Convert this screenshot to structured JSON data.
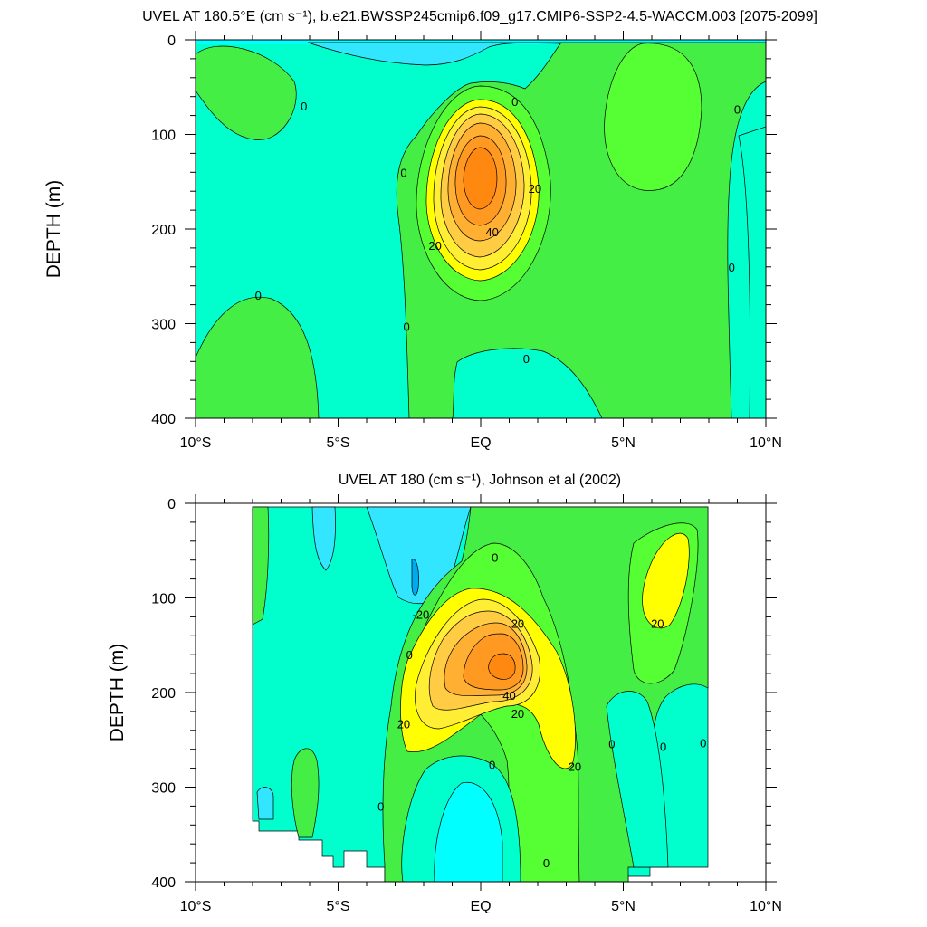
{
  "chart_data": [
    {
      "type": "heatmap",
      "title": "UVEL AT 180.5°E (cm s⁻¹), b.e21.BWSSP245cmip6.f09_g17.CMIP6-SSP2-4.5-WACCM.003 [2075-2099]",
      "xlabel": "",
      "ylabel": "DEPTH (m)",
      "xlim": [
        -10,
        10
      ],
      "ylim": [
        400,
        0
      ],
      "x_ticks": [
        -10,
        -5,
        0,
        5,
        10
      ],
      "x_tick_labels": [
        "10°S",
        "5°S",
        "EQ",
        "5°N",
        "10°N"
      ],
      "y_ticks": [
        0,
        100,
        200,
        300,
        400
      ],
      "y_tick_labels": [
        "0",
        "100",
        "200",
        "300",
        "400"
      ],
      "grid": false,
      "contour_interval": 10,
      "contour_labels": [
        {
          "x": -6.2,
          "y": 70,
          "text": "0"
        },
        {
          "x": 1.2,
          "y": 65,
          "text": "0"
        },
        {
          "x": 9.0,
          "y": 73,
          "text": "0"
        },
        {
          "x": -2.7,
          "y": 140,
          "text": "0"
        },
        {
          "x": 1.9,
          "y": 157,
          "text": "20"
        },
        {
          "x": 0.4,
          "y": 203,
          "text": "40"
        },
        {
          "x": -1.6,
          "y": 217,
          "text": "20"
        },
        {
          "x": 8.8,
          "y": 240,
          "text": "0"
        },
        {
          "x": -7.8,
          "y": 270,
          "text": "0"
        },
        {
          "x": -2.6,
          "y": 303,
          "text": "0"
        },
        {
          "x": 1.6,
          "y": 337,
          "text": "0"
        }
      ],
      "jet_core": {
        "lat": 0.0,
        "depth": 145,
        "max_speed": 70
      }
    },
    {
      "type": "heatmap",
      "title": "UVEL AT 180 (cm s⁻¹), Johnson et al (2002)",
      "xlabel": "",
      "ylabel": "DEPTH (m)",
      "xlim": [
        -10,
        10
      ],
      "ylim": [
        400,
        0
      ],
      "x_ticks": [
        -10,
        -5,
        0,
        5,
        10
      ],
      "x_tick_labels": [
        "10°S",
        "5°S",
        "EQ",
        "5°N",
        "10°N"
      ],
      "y_ticks": [
        0,
        100,
        200,
        300,
        400
      ],
      "y_tick_labels": [
        "0",
        "100",
        "200",
        "300",
        "400"
      ],
      "grid": false,
      "contour_interval": 10,
      "data_extent_lat": [
        -8,
        8
      ],
      "contour_labels": [
        {
          "x": 0.5,
          "y": 57,
          "text": "0"
        },
        {
          "x": -2.1,
          "y": 117,
          "text": "-20"
        },
        {
          "x": 1.3,
          "y": 127,
          "text": "20"
        },
        {
          "x": 6.2,
          "y": 127,
          "text": "20"
        },
        {
          "x": -2.5,
          "y": 160,
          "text": "0"
        },
        {
          "x": 1.0,
          "y": 203,
          "text": "40"
        },
        {
          "x": 1.3,
          "y": 222,
          "text": "20"
        },
        {
          "x": -2.7,
          "y": 233,
          "text": "20"
        },
        {
          "x": 3.3,
          "y": 278,
          "text": "20"
        },
        {
          "x": 4.6,
          "y": 254,
          "text": "0"
        },
        {
          "x": 6.4,
          "y": 257,
          "text": "0"
        },
        {
          "x": 7.8,
          "y": 253,
          "text": "0"
        },
        {
          "x": 0.4,
          "y": 276,
          "text": "0"
        },
        {
          "x": -3.5,
          "y": 320,
          "text": "0"
        },
        {
          "x": 2.3,
          "y": 380,
          "text": "0"
        }
      ],
      "jet_core": {
        "lat": 0.6,
        "depth": 170,
        "max_speed": 60
      }
    }
  ]
}
